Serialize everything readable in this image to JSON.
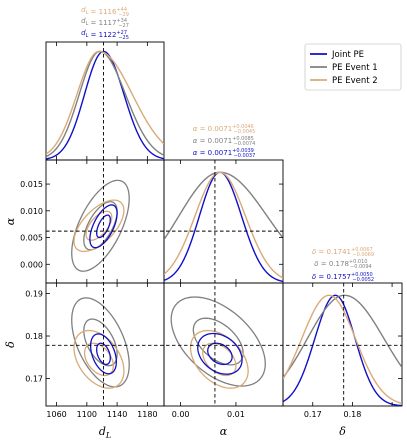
{
  "chart_data": {
    "type": "corner",
    "parameters": [
      {
        "key": "dL",
        "symbol": "d",
        "subscript": "L",
        "ticks": [
          1060,
          1100,
          1140,
          1180
        ],
        "range": [
          1046,
          1202
        ],
        "truth": 1122
      },
      {
        "key": "alpha",
        "symbol": "α",
        "subscript": "",
        "ticks": [
          0.0,
          0.01
        ],
        "tick_labels": [
          "0.00",
          "0.01"
        ],
        "range": [
          -0.003,
          0.0185
        ],
        "truth": 0.0062
      },
      {
        "key": "delta",
        "symbol": "δ",
        "subscript": "",
        "ticks": [
          0.17,
          0.18,
          0.19
        ],
        "range": [
          0.1625,
          0.1925
        ],
        "truth": 0.1778
      }
    ],
    "alpha_y_ticks": [
      0.0,
      0.005,
      0.01,
      0.015
    ],
    "alpha_y_tick_labels": [
      "0.000",
      "0.005",
      "0.010",
      "0.015"
    ],
    "delta_y_ticks": [
      0.17,
      0.18,
      0.19
    ],
    "delta_y_tick_labels": [
      "0.17",
      "0.18",
      "0.19"
    ],
    "dL_x_tick_labels": [
      "1060",
      "1100",
      "1140",
      "1180"
    ],
    "alpha_x_tick_labels": [
      "0.00",
      "0.01"
    ],
    "delta_x_tick_labels": [
      "0.17",
      "0.18"
    ],
    "series": [
      {
        "name": "Joint PE",
        "color": "#1010c8",
        "dL": {
          "median": 1122,
          "plus": 27,
          "minus": 25
        },
        "alpha": {
          "median": 0.0071,
          "plus": 0.0039,
          "minus": 0.0037
        },
        "delta": {
          "median": 0.1757,
          "plus": 0.005,
          "minus": 0.0052
        }
      },
      {
        "name": "PE Event 1",
        "color": "#808080",
        "dL": {
          "median": 1117,
          "plus": 34,
          "minus": 27
        },
        "alpha": {
          "median": 0.0071,
          "plus": 0.0085,
          "minus": 0.0074
        },
        "delta": {
          "median": 0.178,
          "plus": 0.01,
          "minus": 0.0094
        }
      },
      {
        "name": "PE Event 2",
        "color": "#d9aa78",
        "dL": {
          "median": 1116,
          "plus": 44,
          "minus": 29
        },
        "alpha": {
          "median": 0.0071,
          "plus": 0.0046,
          "minus": 0.0045
        },
        "delta": {
          "median": 0.1741,
          "plus": 0.0067,
          "minus": 0.0069
        }
      }
    ],
    "annotations": {
      "dL": [
        {
          "series": 2,
          "text": "d",
          "sub": "L",
          "eq": " = 1116",
          "sup": "+44",
          "inf": "−29"
        },
        {
          "series": 1,
          "text": "d",
          "sub": "L",
          "eq": " = 1117",
          "sup": "+34",
          "inf": "−27"
        },
        {
          "series": 0,
          "text": "d",
          "sub": "L",
          "eq": " = 1122",
          "sup": "+27",
          "inf": "−25"
        }
      ],
      "alpha": [
        {
          "series": 2,
          "text": "α",
          "sub": "",
          "eq": " = 0.0071",
          "sup": "+0.0046",
          "inf": "−0.0045"
        },
        {
          "series": 1,
          "text": "α",
          "sub": "",
          "eq": " = 0.0071",
          "sup": "+0.0085",
          "inf": "−0.0074"
        },
        {
          "series": 0,
          "text": "α",
          "sub": "",
          "eq": " = 0.0071",
          "sup": "+0.0039",
          "inf": "−0.0037"
        }
      ],
      "delta": [
        {
          "series": 2,
          "text": "δ",
          "sub": "",
          "eq": " = 0.1741",
          "sup": "+0.0067",
          "inf": "−0.0069"
        },
        {
          "series": 1,
          "text": "δ",
          "sub": "",
          "eq": " = 0.178",
          "sup": "+0.010",
          "inf": "−0.0094"
        },
        {
          "series": 0,
          "text": "δ",
          "sub": "",
          "eq": " = 0.1757",
          "sup": "+0.0050",
          "inf": "−0.0052"
        }
      ]
    },
    "contours": {
      "dL_alpha": [
        {
          "series": 1,
          "cx": 1118,
          "cy": 0.0072,
          "levels": [
            [
              22,
              0.0045,
              0.6
            ],
            [
              38,
              0.0085,
              0.6
            ]
          ]
        },
        {
          "series": 2,
          "cx": 1116,
          "cy": 0.0072,
          "levels": [
            [
              17,
              0.0027,
              0.6
            ],
            [
              33,
              0.0048,
              0.6
            ]
          ]
        },
        {
          "series": 0,
          "cx": 1122,
          "cy": 0.0071,
          "levels": [
            [
              9,
              0.0021,
              0.6
            ],
            [
              18,
              0.004,
              0.6
            ]
          ]
        }
      ],
      "dL_delta": [
        {
          "series": 1,
          "cx": 1118,
          "cy": 0.1785,
          "levels": [
            [
              22,
              0.0055,
              -0.5
            ],
            [
              38,
              0.0105,
              -0.5
            ]
          ]
        },
        {
          "series": 2,
          "cx": 1116,
          "cy": 0.1745,
          "levels": [
            [
              19,
              0.0038,
              -0.4
            ],
            [
              33,
              0.0068,
              -0.4
            ]
          ]
        },
        {
          "series": 0,
          "cx": 1122,
          "cy": 0.1758,
          "levels": [
            [
              9,
              0.0025,
              -0.4
            ],
            [
              17,
              0.0047,
              -0.4
            ]
          ]
        }
      ],
      "alpha_delta": [
        {
          "series": 1,
          "cx": 0.0068,
          "cy": 0.1787,
          "levels": [
            [
              0.0045,
              0.0055,
              -0.5
            ],
            [
              0.0085,
              0.0105,
              -0.5
            ]
          ]
        },
        {
          "series": 2,
          "cx": 0.007,
          "cy": 0.1745,
          "levels": [
            [
              0.003,
              0.0038,
              -0.4
            ],
            [
              0.0052,
              0.0068,
              -0.4
            ]
          ]
        },
        {
          "series": 0,
          "cx": 0.0071,
          "cy": 0.1758,
          "levels": [
            [
              0.0022,
              0.0025,
              -0.3
            ],
            [
              0.004,
              0.0048,
              -0.3
            ]
          ]
        }
      ]
    },
    "legend_position": "top-right"
  }
}
